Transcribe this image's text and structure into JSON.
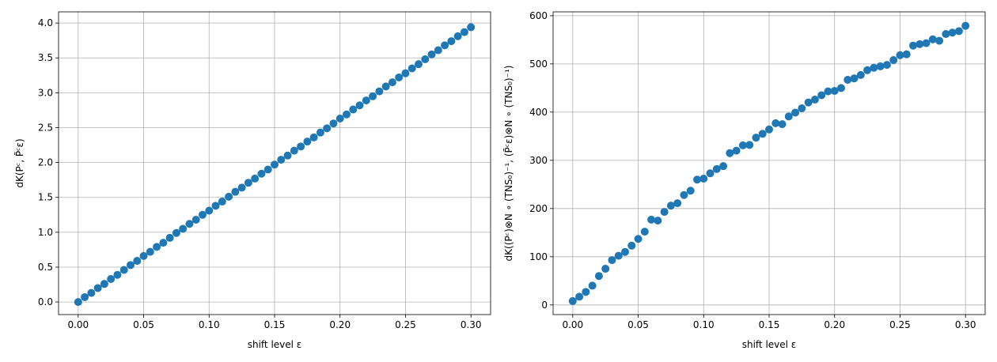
{
  "chart_data": [
    {
      "type": "scatter",
      "color": "#1f77b4",
      "grid": true,
      "xlabel": "shift level ε",
      "ylabel": "dK(Pᶜ, P̃ᶜε)",
      "x": [
        0,
        0.005,
        0.01,
        0.015,
        0.02,
        0.025,
        0.03,
        0.035,
        0.04,
        0.045,
        0.05,
        0.055,
        0.06,
        0.065,
        0.07,
        0.075,
        0.08,
        0.085,
        0.09,
        0.095,
        0.1,
        0.105,
        0.11,
        0.115,
        0.12,
        0.125,
        0.13,
        0.135,
        0.14,
        0.145,
        0.15,
        0.155,
        0.16,
        0.165,
        0.17,
        0.175,
        0.18,
        0.185,
        0.19,
        0.195,
        0.2,
        0.205,
        0.21,
        0.215,
        0.22,
        0.225,
        0.23,
        0.235,
        0.24,
        0.245,
        0.25,
        0.255,
        0.26,
        0.265,
        0.27,
        0.275,
        0.28,
        0.285,
        0.29,
        0.295,
        0.3
      ],
      "values": [
        0,
        0.07,
        0.13,
        0.2,
        0.26,
        0.33,
        0.39,
        0.46,
        0.53,
        0.59,
        0.66,
        0.72,
        0.79,
        0.85,
        0.92,
        0.99,
        1.05,
        1.12,
        1.18,
        1.25,
        1.31,
        1.38,
        1.44,
        1.51,
        1.58,
        1.64,
        1.71,
        1.77,
        1.84,
        1.9,
        1.97,
        2.04,
        2.1,
        2.17,
        2.23,
        2.3,
        2.36,
        2.43,
        2.49,
        2.56,
        2.63,
        2.69,
        2.76,
        2.82,
        2.89,
        2.95,
        3.02,
        3.09,
        3.15,
        3.22,
        3.28,
        3.35,
        3.41,
        3.48,
        3.55,
        3.61,
        3.68,
        3.74,
        3.81,
        3.87,
        3.94
      ],
      "xlim": [
        -0.015,
        0.315
      ],
      "xticks": [
        {
          "value": 0,
          "label": "0.00"
        },
        {
          "value": 0.05,
          "label": "0.05"
        },
        {
          "value": 0.1,
          "label": "0.10"
        },
        {
          "value": 0.15,
          "label": "0.15"
        },
        {
          "value": 0.2,
          "label": "0.20"
        },
        {
          "value": 0.25,
          "label": "0.25"
        },
        {
          "value": 0.3,
          "label": "0.30"
        }
      ],
      "ylim": [
        -0.18,
        4.16
      ],
      "yticks": [
        {
          "value": 0,
          "label": "0.0"
        },
        0.5,
        {
          "value": 1,
          "label": "1.0"
        },
        1.5,
        {
          "value": 2,
          "label": "2.0"
        },
        2.5,
        {
          "value": 3,
          "label": "3.0"
        },
        3.5,
        {
          "value": 4,
          "label": "4.0"
        }
      ]
    },
    {
      "type": "scatter",
      "color": "#1f77b4",
      "grid": true,
      "xlabel": "shift level ε",
      "ylabel": "dK((Pᶜ)⊗N ∘ (TNS₀)⁻¹, (P̃ᶜε)⊗N ∘ (TNS₀)⁻¹)",
      "x": [
        0,
        0.005,
        0.01,
        0.015,
        0.02,
        0.025,
        0.03,
        0.035,
        0.04,
        0.045,
        0.05,
        0.055,
        0.06,
        0.065,
        0.07,
        0.075,
        0.08,
        0.085,
        0.09,
        0.095,
        0.1,
        0.105,
        0.11,
        0.115,
        0.12,
        0.125,
        0.13,
        0.135,
        0.14,
        0.145,
        0.15,
        0.155,
        0.16,
        0.165,
        0.17,
        0.175,
        0.18,
        0.185,
        0.19,
        0.195,
        0.2,
        0.205,
        0.21,
        0.215,
        0.22,
        0.225,
        0.23,
        0.235,
        0.24,
        0.245,
        0.25,
        0.255,
        0.26,
        0.265,
        0.27,
        0.275,
        0.28,
        0.285,
        0.29,
        0.295,
        0.3
      ],
      "values": [
        8,
        17,
        27,
        40,
        60,
        75,
        93,
        102,
        110,
        123,
        137,
        152,
        177,
        175,
        193,
        206,
        211,
        228,
        237,
        260,
        262,
        273,
        282,
        288,
        315,
        320,
        331,
        332,
        347,
        355,
        364,
        377,
        375,
        391,
        399,
        408,
        420,
        426,
        435,
        443,
        444,
        450,
        467,
        470,
        477,
        487,
        492,
        495,
        498,
        508,
        518,
        520,
        538,
        541,
        543,
        551,
        548,
        562,
        565,
        568,
        579
      ],
      "xlim": [
        -0.015,
        0.315
      ],
      "xticks": [
        {
          "value": 0,
          "label": "0.00"
        },
        {
          "value": 0.05,
          "label": "0.05"
        },
        {
          "value": 0.1,
          "label": "0.10"
        },
        {
          "value": 0.15,
          "label": "0.15"
        },
        {
          "value": 0.2,
          "label": "0.20"
        },
        {
          "value": 0.25,
          "label": "0.25"
        },
        {
          "value": 0.3,
          "label": "0.30"
        }
      ],
      "ylim": [
        -20,
        608
      ],
      "yticks": [
        0,
        100,
        200,
        300,
        400,
        500,
        600
      ]
    }
  ]
}
